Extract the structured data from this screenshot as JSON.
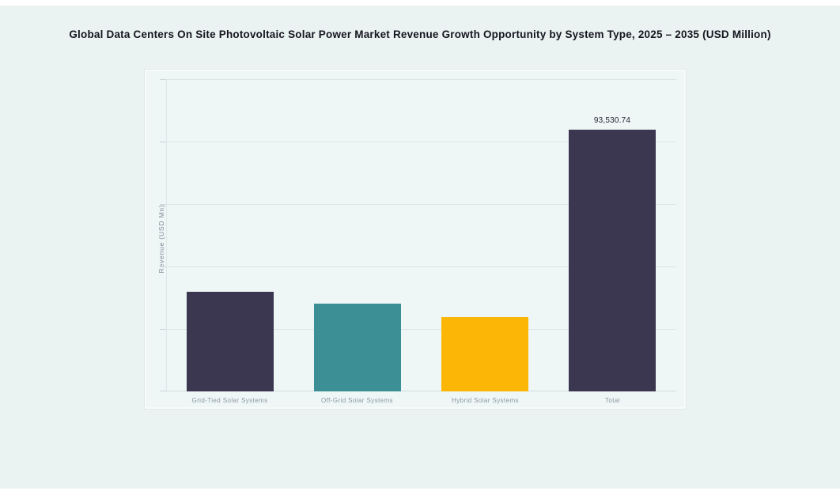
{
  "chart_data": {
    "type": "bar",
    "title": "Global Data Centers On Site Photovoltaic Solar Power Market Revenue Growth Opportunity by System Type, 2025 – 2035 (USD Million)",
    "ylabel": "Revenue (USD Mn)",
    "xlabel": "",
    "categories": [
      "Grid-Tied Solar Systems",
      "Off-Grid Solar Systems",
      "Hybrid Solar Systems",
      "Total"
    ],
    "values": [
      35550,
      31300,
      26680,
      93530.74
    ],
    "value_labels": [
      "",
      "",
      "",
      "93,530.74"
    ],
    "bar_colors": [
      "#3b3750",
      "#3d8f96",
      "#fcb606",
      "#3b3750"
    ],
    "ylim": [
      0,
      111600
    ],
    "gridline_count": 6,
    "grid": true,
    "legend": false
  },
  "colors": {
    "page_background": "#ffffff",
    "canvas_background": "#eaf3f2",
    "panel_background": "#eef6f6",
    "panel_border": "#f7fbfa",
    "gridline": "#dce5e6",
    "axis_line": "#d5dfe0",
    "axis_label_text": "#8d97a3",
    "title_text": "#15151f",
    "value_label_text": "#23232f"
  }
}
